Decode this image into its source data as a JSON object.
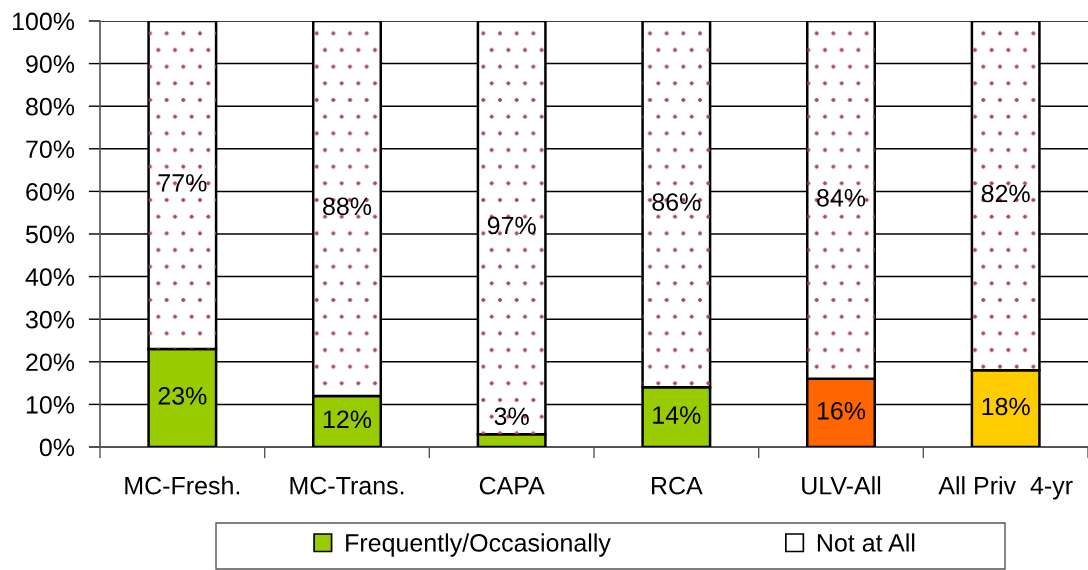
{
  "chart_data": {
    "type": "bar",
    "stacked": true,
    "categories": [
      "MC-Fresh.",
      "MC-Trans.",
      "CAPA",
      "RCA",
      "ULV-All",
      "All Priv  4-yr"
    ],
    "series": [
      {
        "name": "Frequently/Occasionally",
        "color": "#99cc00",
        "colors": [
          "#99cc00",
          "#99cc00",
          "#99cc00",
          "#99cc00",
          "#ff6600",
          "#ffcc00"
        ],
        "values": [
          23,
          12,
          3,
          14,
          16,
          18
        ],
        "value_labels": [
          "23%",
          "12%",
          "3%",
          "14%",
          "16%",
          "18%"
        ]
      },
      {
        "name": "Not at All",
        "color": "#ffffff",
        "values": [
          77,
          88,
          97,
          86,
          84,
          82
        ],
        "value_labels": [
          "77%",
          "88%",
          "97%",
          "86%",
          "84%",
          "82%"
        ]
      }
    ],
    "ylim": [
      0,
      100
    ],
    "yticks": [
      {
        "value": 0,
        "label": "0%"
      },
      {
        "value": 10,
        "label": "10%"
      },
      {
        "value": 20,
        "label": "20%"
      },
      {
        "value": 30,
        "label": "30%"
      },
      {
        "value": 40,
        "label": "40%"
      },
      {
        "value": 50,
        "label": "50%"
      },
      {
        "value": 60,
        "label": "60%"
      },
      {
        "value": 70,
        "label": "70%"
      },
      {
        "value": 80,
        "label": "80%"
      },
      {
        "value": 90,
        "label": "90%"
      },
      {
        "value": 100,
        "label": "100%"
      }
    ],
    "grid": "y",
    "legend": "bottom"
  }
}
